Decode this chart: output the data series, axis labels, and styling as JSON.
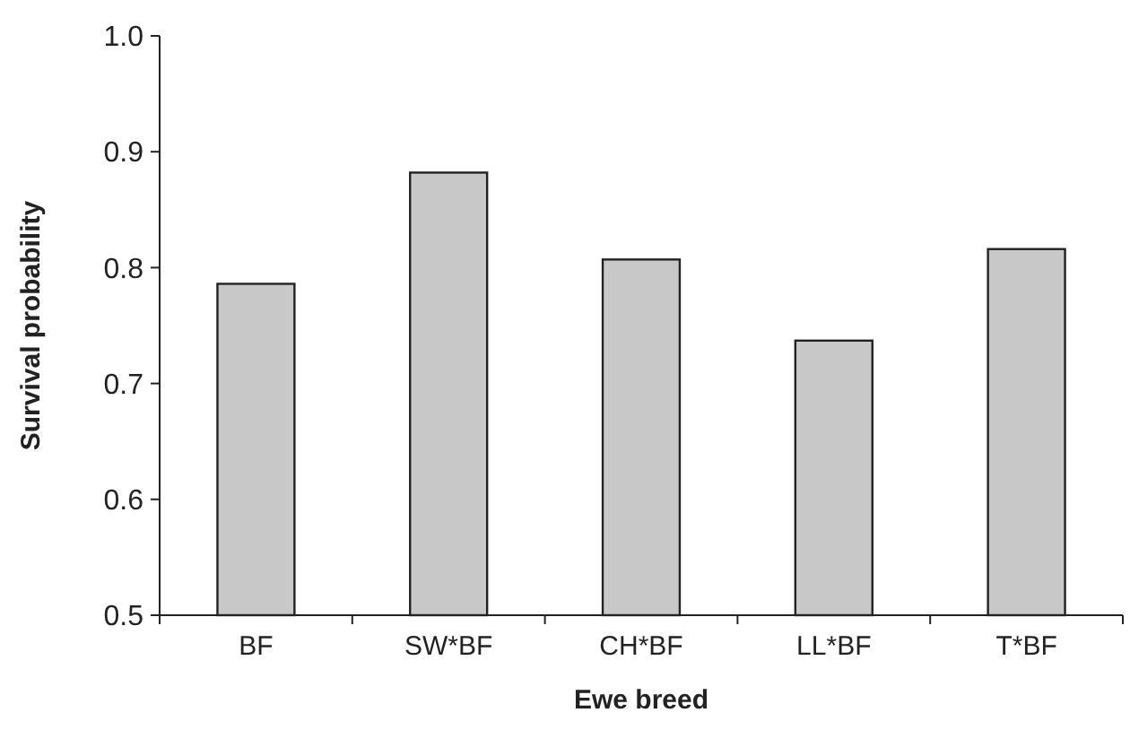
{
  "chart_data": {
    "type": "bar",
    "xlabel": "Ewe breed",
    "ylabel": "Survival probability",
    "categories": [
      "BF",
      "SW*BF",
      "CH*BF",
      "LL*BF",
      "T*BF"
    ],
    "values": [
      0.786,
      0.882,
      0.807,
      0.737,
      0.816
    ],
    "color": "#c8c8c8",
    "ylim": [
      0.5,
      1.0
    ],
    "yticks": [
      {
        "value": 0.5,
        "label": "0.5"
      },
      {
        "value": 0.6,
        "label": "0.6"
      },
      {
        "value": 0.7,
        "label": "0.7"
      },
      {
        "value": 0.8,
        "label": "0.8"
      },
      {
        "value": 0.9,
        "label": "0.9"
      },
      {
        "value": 1.0,
        "label": "1.0"
      }
    ],
    "grid": false
  }
}
